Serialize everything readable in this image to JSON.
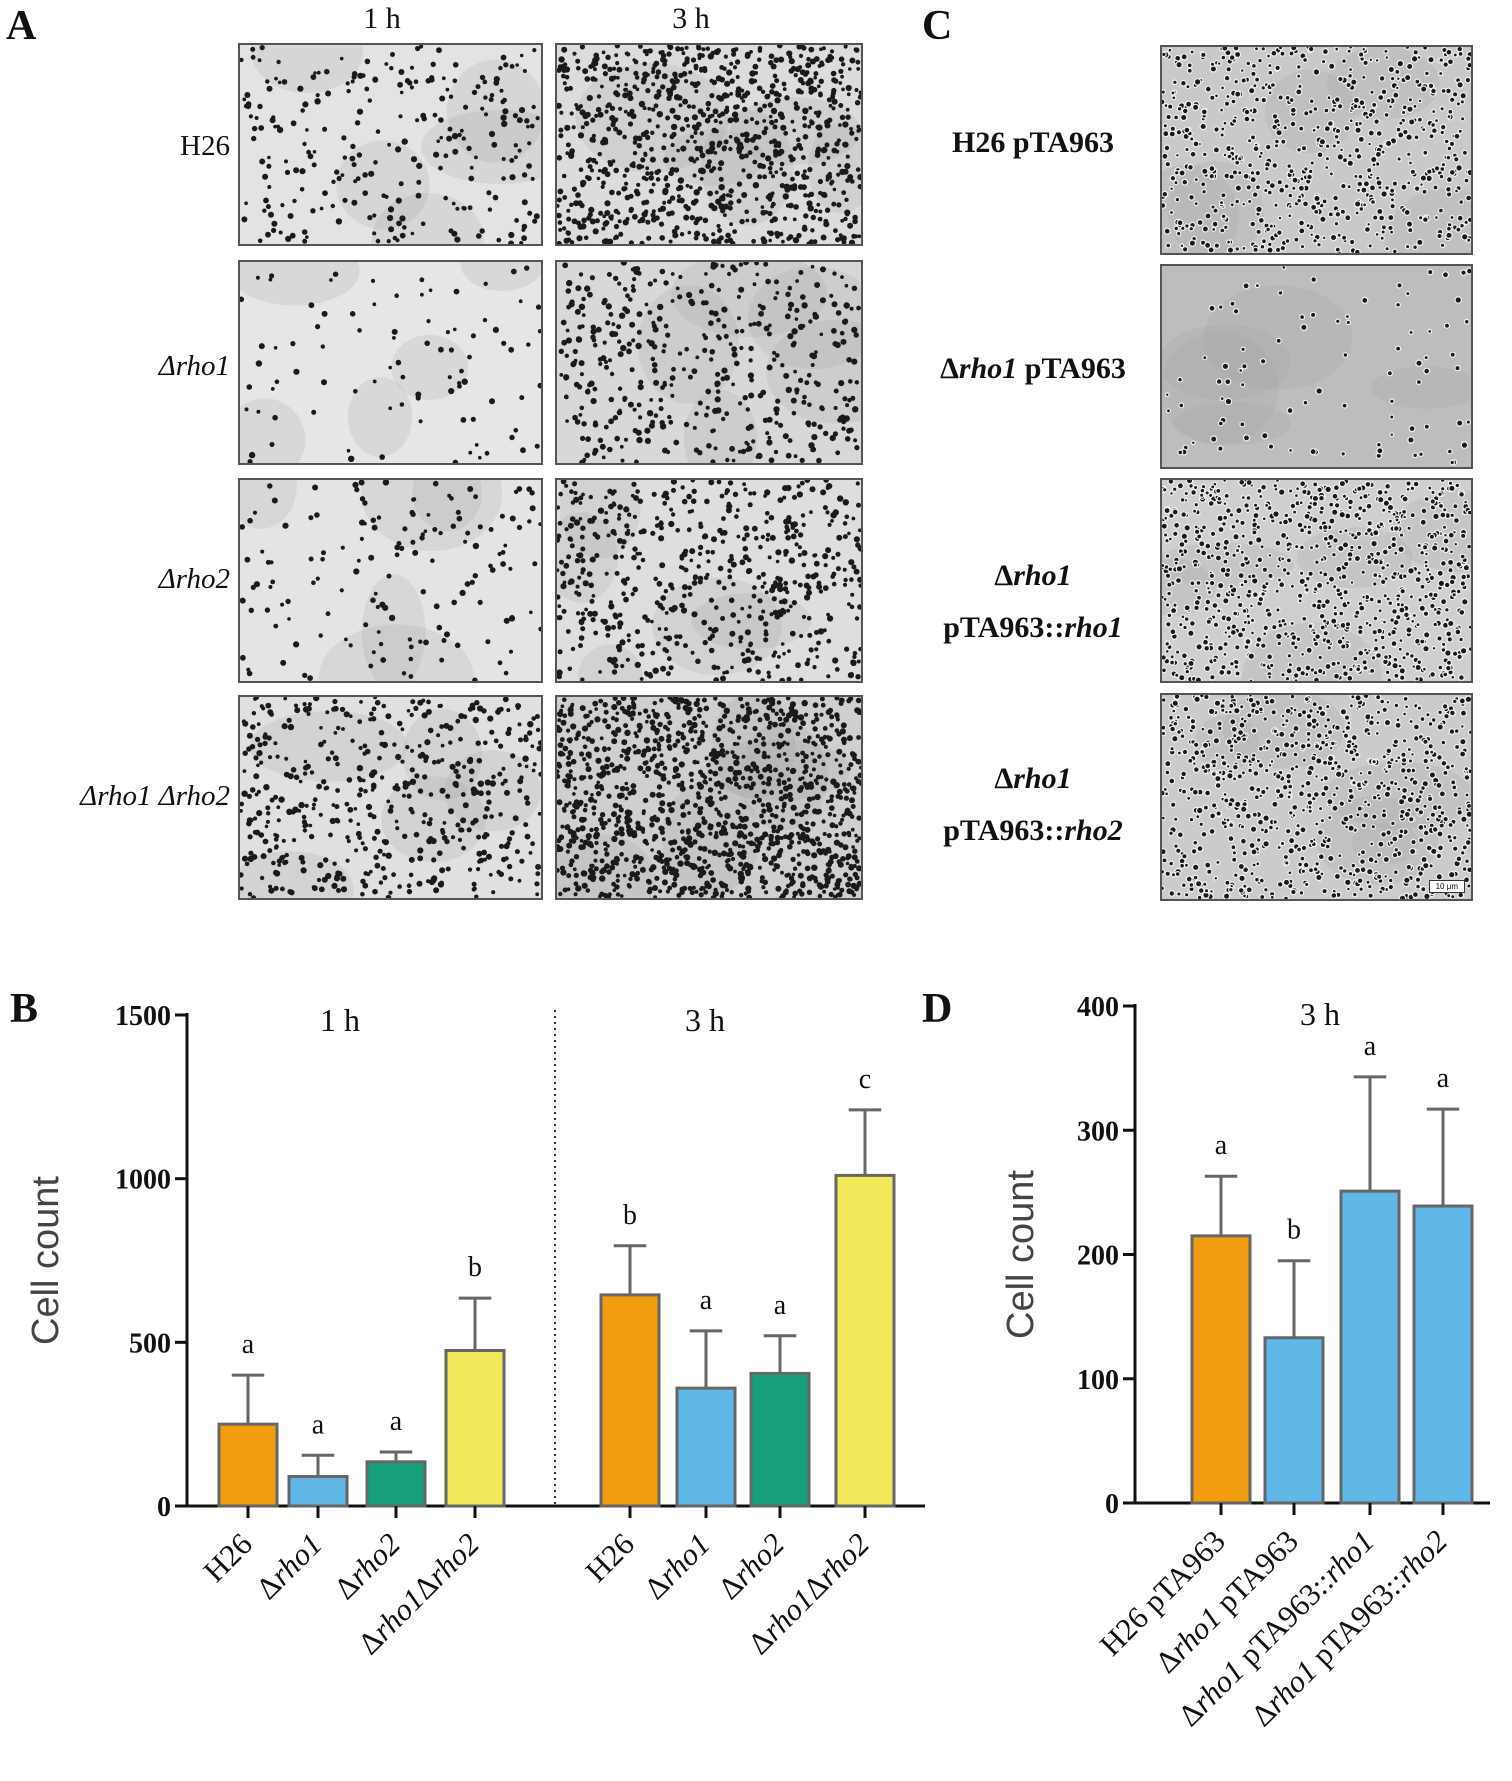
{
  "panel_letters": {
    "A": "A",
    "B": "B",
    "C": "C",
    "D": "D"
  },
  "panel_a": {
    "time_headers": [
      "1 h",
      "3 h"
    ],
    "rows": [
      {
        "label": "H26",
        "italic": false
      },
      {
        "label": "Δrho1",
        "italic": true
      },
      {
        "label": "Δrho2",
        "italic": true
      },
      {
        "label": "Δrho1 Δrho2",
        "italic": true
      }
    ],
    "cell_density": [
      [
        260,
        900
      ],
      [
        90,
        430
      ],
      [
        150,
        560
      ],
      [
        480,
        1200
      ]
    ],
    "bg_colors": [
      [
        "#e3e3e3",
        "#dcdcdc"
      ],
      [
        "#e6e6e6",
        "#d8d8d8"
      ],
      [
        "#e4e4e4",
        "#dedede"
      ],
      [
        "#e0e0e0",
        "#cfcfcf"
      ]
    ]
  },
  "panel_c": {
    "rows": [
      {
        "line1": "H26 pTA963",
        "line2": ""
      },
      {
        "line1": "Δrho1 pTA963",
        "line2": ""
      },
      {
        "line1": "Δrho1",
        "line2": "pTA963::rho1"
      },
      {
        "line1": "Δrho1",
        "line2": "pTA963::rho2"
      }
    ],
    "cell_density": [
      700,
      90,
      900,
      850
    ],
    "bg_colors": [
      "#c9c9c9",
      "#bdbdbd",
      "#cfcfcf",
      "#cbcbcb"
    ],
    "scale_bar": "10 μm"
  },
  "chart_data": [
    {
      "type": "bar",
      "panel": "B",
      "ylabel": "Cell count",
      "ylim": [
        0,
        1500
      ],
      "yticks": [
        0,
        500,
        1000,
        1500
      ],
      "groups": [
        {
          "title": "1 h",
          "categories": [
            "H26",
            "Δrho1",
            "Δrho2",
            "Δrho1Δrho2"
          ],
          "values": [
            250,
            90,
            135,
            475
          ],
          "errors": [
            150,
            65,
            30,
            160
          ],
          "letters": [
            "a",
            "a",
            "a",
            "b"
          ],
          "colors": [
            "#f29c0f",
            "#5fb8e8",
            "#17a07a",
            "#f2e85c"
          ]
        },
        {
          "title": "3 h",
          "categories": [
            "H26",
            "Δrho1",
            "Δrho2",
            "Δrho1Δrho2"
          ],
          "values": [
            645,
            360,
            405,
            1010
          ],
          "errors": [
            150,
            175,
            115,
            200
          ],
          "letters": [
            "b",
            "a",
            "a",
            "c"
          ],
          "colors": [
            "#f29c0f",
            "#5fb8e8",
            "#17a07a",
            "#f2e85c"
          ]
        }
      ]
    },
    {
      "type": "bar",
      "panel": "D",
      "title": "3 h",
      "ylabel": "Cell count",
      "ylim": [
        0,
        400
      ],
      "yticks": [
        0,
        100,
        200,
        300,
        400
      ],
      "categories": [
        "H26 pTA963",
        "Δrho1 pTA963",
        "Δrho1 pTA963::rho1",
        "Δrho1 pTA963::rho2"
      ],
      "values": [
        215,
        133,
        251,
        239
      ],
      "errors": [
        48,
        62,
        92,
        78
      ],
      "letters": [
        "a",
        "b",
        "a",
        "a"
      ],
      "colors": [
        "#f29c0f",
        "#5fb8e8",
        "#5fb8e8",
        "#5fb8e8"
      ]
    }
  ]
}
